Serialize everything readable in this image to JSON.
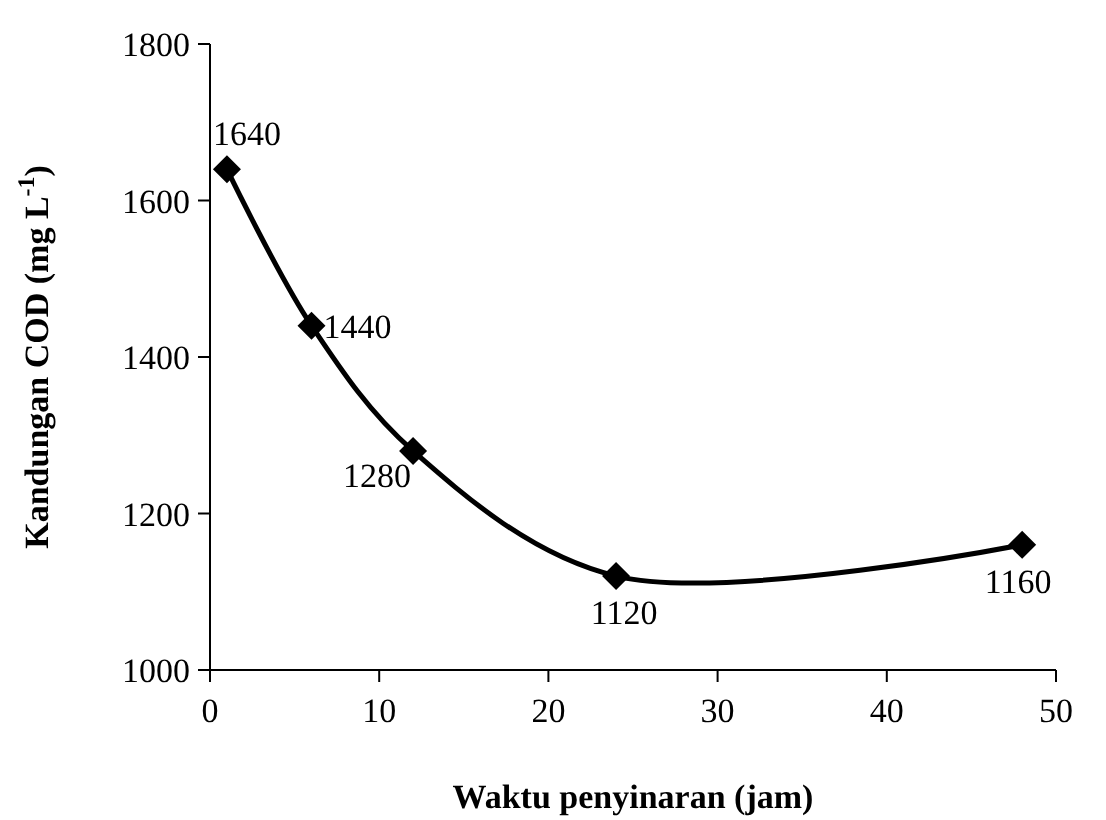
{
  "chart_data": {
    "type": "line",
    "xlabel": "Waktu penyinaran (jam)",
    "ylabel": "Kandungan COD (mg L$^{-1}$)",
    "x": [
      1,
      6,
      12,
      24,
      48
    ],
    "series": [
      {
        "color": "#000000",
        "values": [
          1640,
          1440,
          1280,
          1120,
          1160
        ]
      }
    ],
    "xlim": [
      0,
      50
    ],
    "xticks": [
      0,
      10,
      20,
      30,
      40,
      50
    ],
    "ylim": [
      1000,
      1800
    ],
    "yticks": [
      1000,
      1200,
      1400,
      1600,
      1800
    ],
    "grid": false,
    "marker": "diamond",
    "line_style": "solid",
    "data_labels": true
  }
}
